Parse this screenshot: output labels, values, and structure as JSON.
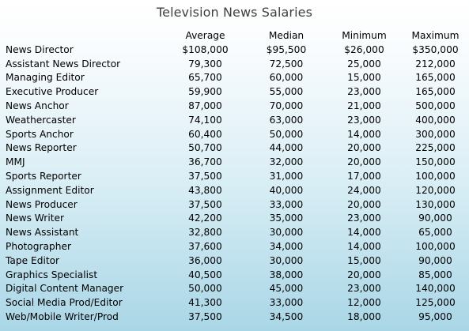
{
  "title": "Television News Salaries",
  "columns": [
    "Average",
    "Median",
    "Minimum",
    "Maximum"
  ],
  "rows": [
    {
      "position": "News Director",
      "average": "$108,000",
      "median": "$95,500",
      "minimum": "$26,000",
      "maximum": "$350,000"
    },
    {
      "position": "Assistant News Director",
      "average": "79,300",
      "median": "72,500",
      "minimum": "25,000",
      "maximum": "212,000"
    },
    {
      "position": "Managing Editor",
      "average": "65,700",
      "median": "60,000",
      "minimum": "15,000",
      "maximum": "165,000"
    },
    {
      "position": "Executive Producer",
      "average": "59,900",
      "median": "55,000",
      "minimum": "23,000",
      "maximum": "165,000"
    },
    {
      "position": "News Anchor",
      "average": "87,000",
      "median": "70,000",
      "minimum": "21,000",
      "maximum": "500,000"
    },
    {
      "position": "Weathercaster",
      "average": "74,100",
      "median": "63,000",
      "minimum": "23,000",
      "maximum": "400,000"
    },
    {
      "position": "Sports Anchor",
      "average": "60,400",
      "median": "50,000",
      "minimum": "14,000",
      "maximum": "300,000"
    },
    {
      "position": "News Reporter",
      "average": "50,700",
      "median": "44,000",
      "minimum": "20,000",
      "maximum": "225,000"
    },
    {
      "position": "MMJ",
      "average": "36,700",
      "median": "32,000",
      "minimum": "20,000",
      "maximum": "150,000"
    },
    {
      "position": "Sports Reporter",
      "average": "37,500",
      "median": "31,000",
      "minimum": "17,000",
      "maximum": "100,000"
    },
    {
      "position": "Assignment Editor",
      "average": "43,800",
      "median": "40,000",
      "minimum": "24,000",
      "maximum": "120,000"
    },
    {
      "position": "News Producer",
      "average": "37,500",
      "median": "33,000",
      "minimum": "20,000",
      "maximum": "130,000"
    },
    {
      "position": "News Writer",
      "average": "42,200",
      "median": "35,000",
      "minimum": "23,000",
      "maximum": "90,000"
    },
    {
      "position": "News Assistant",
      "average": "32,800",
      "median": "30,000",
      "minimum": "14,000",
      "maximum": "65,000"
    },
    {
      "position": "Photographer",
      "average": "37,600",
      "median": "34,000",
      "minimum": "14,000",
      "maximum": "100,000"
    },
    {
      "position": "Tape Editor",
      "average": "36,000",
      "median": "30,000",
      "minimum": "15,000",
      "maximum": "90,000"
    },
    {
      "position": "Graphics Specialist",
      "average": "40,500",
      "median": "38,000",
      "minimum": "20,000",
      "maximum": "85,000"
    },
    {
      "position": "Digital Content Manager",
      "average": "50,000",
      "median": "45,000",
      "minimum": "23,000",
      "maximum": "140,000"
    },
    {
      "position": "Social Media Prod/Editor",
      "average": "41,300",
      "median": "33,000",
      "minimum": "12,000",
      "maximum": "125,000"
    },
    {
      "position": "Web/Mobile Writer/Prod",
      "average": "37,500",
      "median": "34,500",
      "minimum": "18,000",
      "maximum": "95,000"
    }
  ]
}
